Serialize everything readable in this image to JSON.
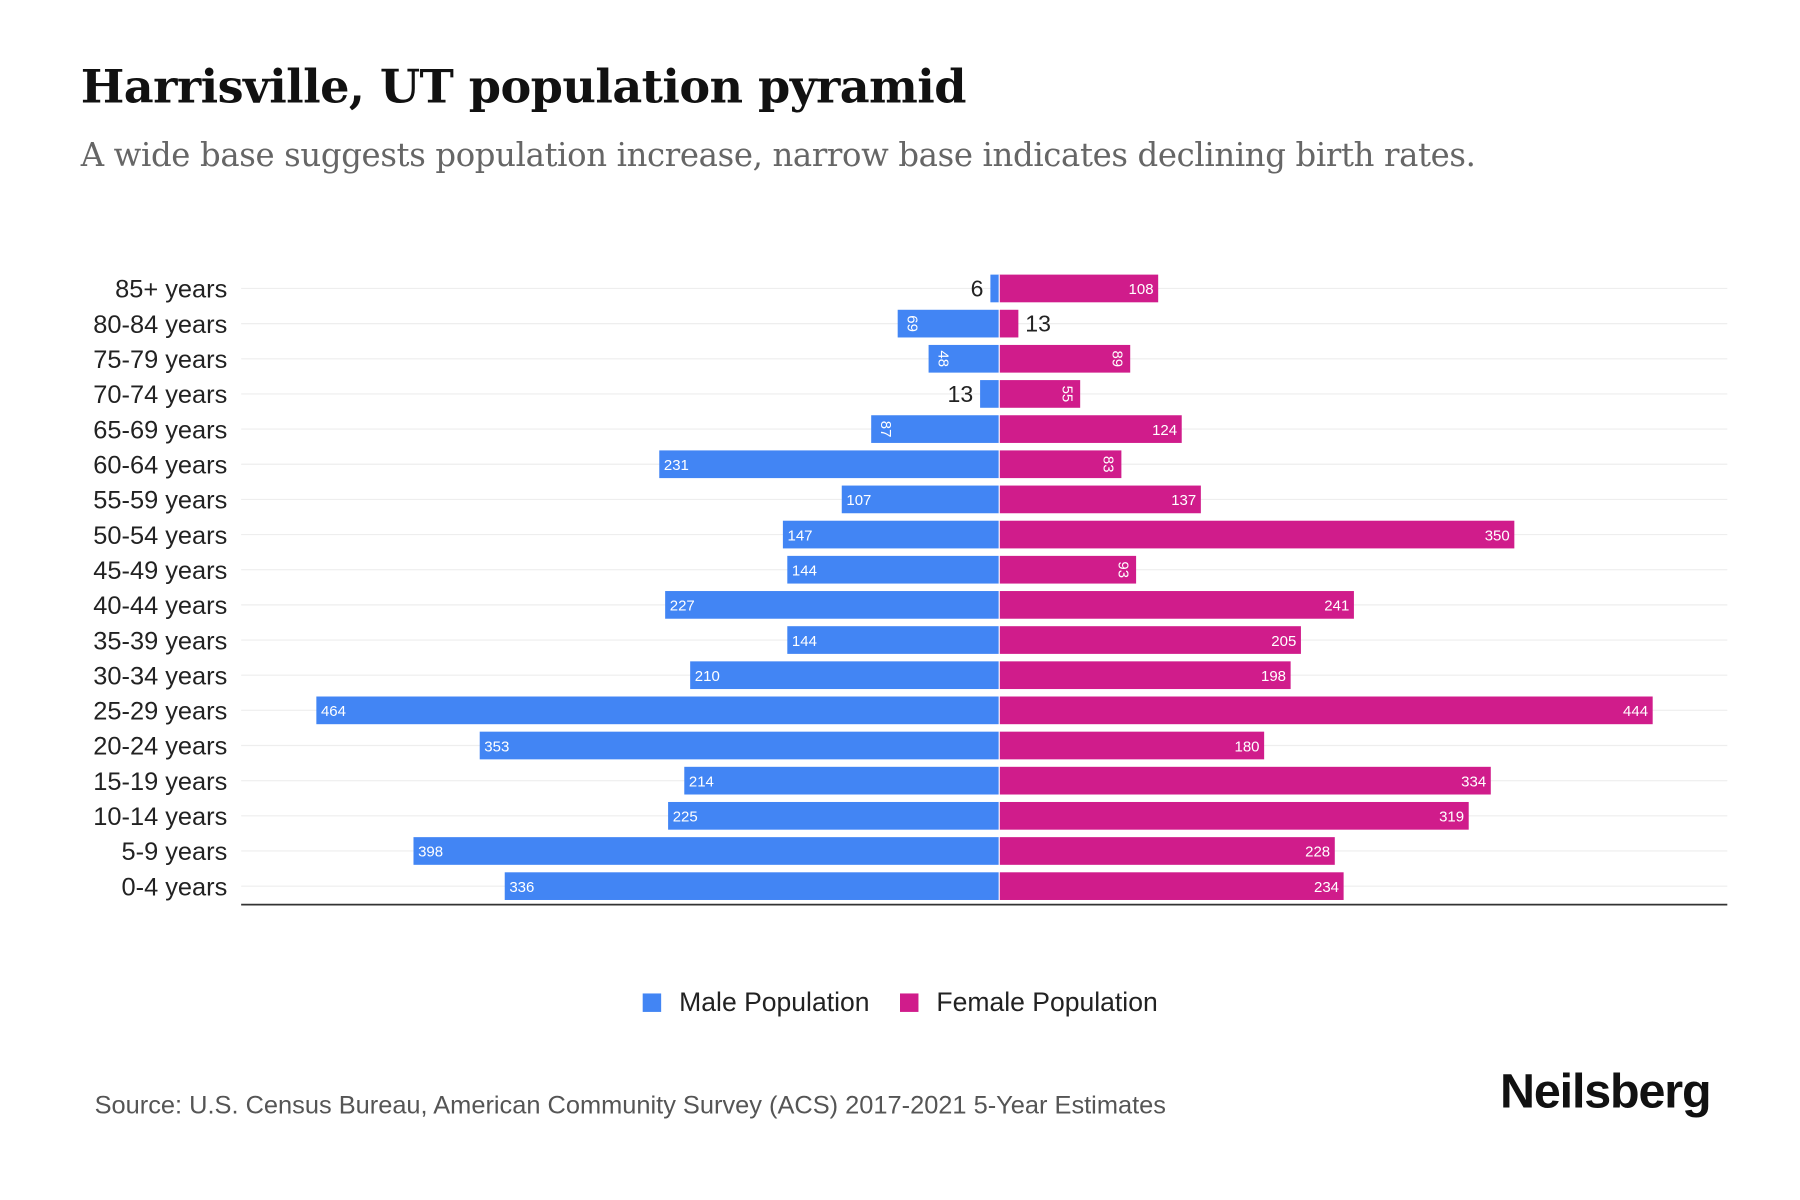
{
  "title": "Harrisville, UT population pyramid",
  "subtitle": "A wide base suggests population increase, narrow base indicates declining birth rates.",
  "source": "Source: U.S. Census Bureau, American Community Survey (ACS) 2017-2021 5-Year Estimates",
  "logo": "Neilsberg",
  "colors": {
    "male": "#4285f4",
    "female": "#d01c8b"
  },
  "chart_data": {
    "type": "bar",
    "orientation": "horizontal-pyramid",
    "categories": [
      "85+ years",
      "80-84 years",
      "75-79 years",
      "70-74 years",
      "65-69 years",
      "60-64 years",
      "55-59 years",
      "50-54 years",
      "45-49 years",
      "40-44 years",
      "35-39 years",
      "30-34 years",
      "25-29 years",
      "20-24 years",
      "15-19 years",
      "10-14 years",
      "5-9 years",
      "0-4 years"
    ],
    "series": [
      {
        "name": "Male Population",
        "values": [
          6,
          69,
          48,
          13,
          87,
          231,
          107,
          147,
          144,
          227,
          144,
          210,
          464,
          353,
          214,
          225,
          398,
          336
        ]
      },
      {
        "name": "Female Population",
        "values": [
          108,
          13,
          89,
          55,
          124,
          83,
          137,
          350,
          93,
          241,
          205,
          198,
          444,
          180,
          334,
          319,
          228,
          234
        ]
      }
    ],
    "xlim": [
      -515,
      495
    ],
    "grid": true,
    "legend": "bottom-center"
  }
}
